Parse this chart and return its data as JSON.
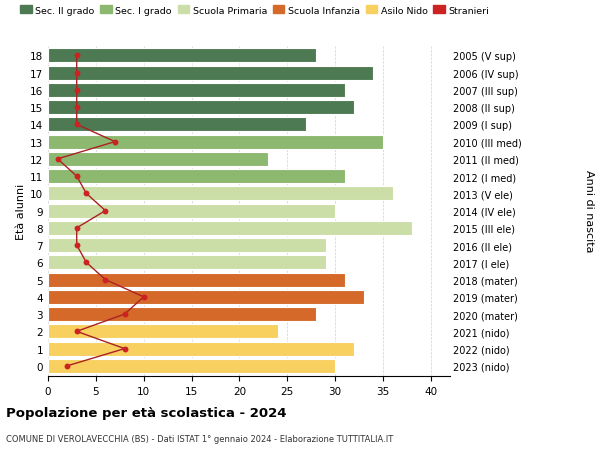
{
  "ages": [
    0,
    1,
    2,
    3,
    4,
    5,
    6,
    7,
    8,
    9,
    10,
    11,
    12,
    13,
    14,
    15,
    16,
    17,
    18
  ],
  "labels_right": [
    "2023 (nido)",
    "2022 (nido)",
    "2021 (nido)",
    "2020 (mater)",
    "2019 (mater)",
    "2018 (mater)",
    "2017 (I ele)",
    "2016 (II ele)",
    "2015 (III ele)",
    "2014 (IV ele)",
    "2013 (V ele)",
    "2012 (I med)",
    "2011 (II med)",
    "2010 (III med)",
    "2009 (I sup)",
    "2008 (II sup)",
    "2007 (III sup)",
    "2006 (IV sup)",
    "2005 (V sup)"
  ],
  "bar_values": [
    30,
    32,
    24,
    28,
    33,
    31,
    29,
    29,
    38,
    30,
    36,
    31,
    23,
    35,
    27,
    32,
    31,
    34,
    28
  ],
  "stranieri": [
    2,
    8,
    3,
    8,
    10,
    6,
    4,
    3,
    3,
    6,
    4,
    3,
    1,
    7,
    3,
    3,
    3,
    3,
    3
  ],
  "bar_colors": [
    "#f7d060",
    "#f7d060",
    "#f7d060",
    "#d4692a",
    "#d4692a",
    "#d4692a",
    "#ccdea8",
    "#ccdea8",
    "#ccdea8",
    "#ccdea8",
    "#ccdea8",
    "#8db870",
    "#8db870",
    "#8db870",
    "#4d7a52",
    "#4d7a52",
    "#4d7a52",
    "#4d7a52",
    "#4d7a52"
  ],
  "legend_labels": [
    "Sec. II grado",
    "Sec. I grado",
    "Scuola Primaria",
    "Scuola Infanzia",
    "Asilo Nido",
    "Stranieri"
  ],
  "legend_colors_list": [
    "#4d7a52",
    "#8db870",
    "#ccdea8",
    "#d4692a",
    "#f7d060",
    "#cc2222"
  ],
  "ylabel_left": "Età alunni",
  "ylabel_right": "Anni di nascita",
  "title": "Popolazione per età scolastica - 2024",
  "subtitle": "COMUNE DI VEROLAVECCHIA (BS) - Dati ISTAT 1° gennaio 2024 - Elaborazione TUTTITALIA.IT",
  "xlim": [
    0,
    42
  ],
  "background_color": "#ffffff",
  "stranieri_color": "#cc2222",
  "stranieri_line_color": "#aa2222",
  "grid_color": "#cccccc"
}
